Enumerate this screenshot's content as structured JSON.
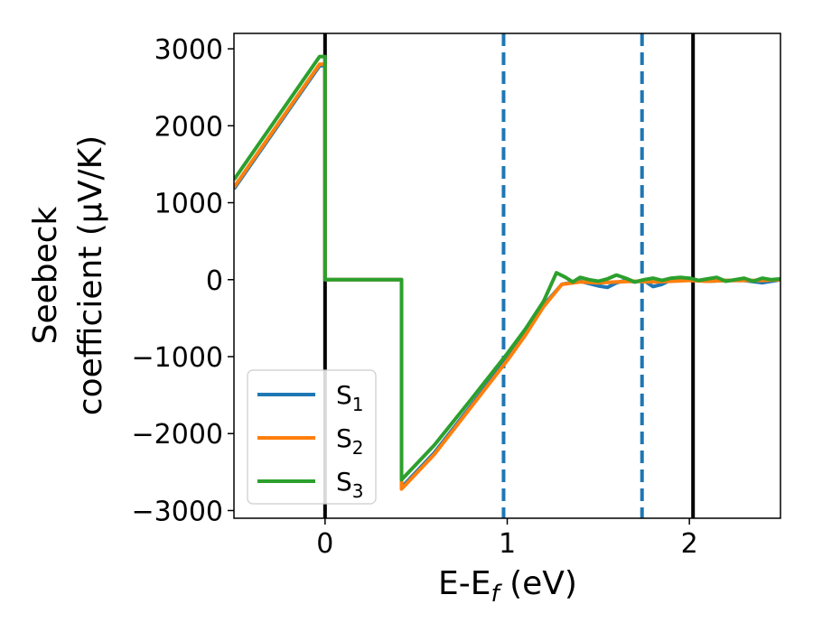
{
  "chart_data": {
    "type": "line",
    "xlabel_parts": [
      "E-E",
      "f",
      " (eV)"
    ],
    "ylabel_lines": [
      "Seebeck",
      "coefficient  (μV/K)"
    ],
    "xlim": [
      -0.5,
      2.5
    ],
    "ylim": [
      -3100,
      3200
    ],
    "x_ticks": [
      0,
      1,
      2
    ],
    "x_tick_labels": [
      "0",
      "1",
      "2"
    ],
    "y_ticks": [
      -3000,
      -2000,
      -1000,
      0,
      1000,
      2000,
      3000
    ],
    "y_tick_labels": [
      "−3000",
      "−2000",
      "−1000",
      "0",
      "1000",
      "2000",
      "3000"
    ],
    "grid": false,
    "legend_position": "lower-left",
    "vertical_lines": [
      {
        "x": 0,
        "style": "solid",
        "color": "#000000"
      },
      {
        "x": 2.02,
        "style": "solid",
        "color": "#000000"
      },
      {
        "x": 0.98,
        "style": "dashed",
        "color": "#1f77b4"
      },
      {
        "x": 1.74,
        "style": "dashed",
        "color": "#1f77b4"
      }
    ],
    "series": [
      {
        "name": "S",
        "sub": "1",
        "color": "#1f77b4",
        "points": [
          [
            -0.5,
            1180
          ],
          [
            -0.03,
            2780
          ],
          [
            0,
            2780
          ],
          [
            0,
            0
          ],
          [
            0.42,
            0
          ],
          [
            0.42,
            -2700
          ],
          [
            0.6,
            -2250
          ],
          [
            0.8,
            -1640
          ],
          [
            1.0,
            -1030
          ],
          [
            1.1,
            -700
          ],
          [
            1.2,
            -330
          ],
          [
            1.3,
            -60
          ],
          [
            1.4,
            -20
          ],
          [
            1.5,
            -80
          ],
          [
            1.55,
            -100
          ],
          [
            1.6,
            -40
          ],
          [
            1.65,
            -10
          ],
          [
            1.7,
            -30
          ],
          [
            1.75,
            -10
          ],
          [
            1.8,
            -90
          ],
          [
            1.85,
            -60
          ],
          [
            1.9,
            0
          ],
          [
            2.0,
            0
          ],
          [
            2.1,
            -20
          ],
          [
            2.2,
            -10
          ],
          [
            2.3,
            -10
          ],
          [
            2.4,
            -40
          ],
          [
            2.5,
            0
          ]
        ]
      },
      {
        "name": "S",
        "sub": "2",
        "color": "#ff7f0e",
        "points": [
          [
            -0.5,
            1200
          ],
          [
            -0.03,
            2800
          ],
          [
            0,
            2800
          ],
          [
            0,
            0
          ],
          [
            0.42,
            0
          ],
          [
            0.42,
            -2720
          ],
          [
            0.6,
            -2270
          ],
          [
            0.8,
            -1660
          ],
          [
            1.0,
            -1050
          ],
          [
            1.1,
            -720
          ],
          [
            1.2,
            -350
          ],
          [
            1.3,
            -60
          ],
          [
            1.4,
            -30
          ],
          [
            1.5,
            -40
          ],
          [
            1.6,
            -30
          ],
          [
            1.7,
            -20
          ],
          [
            1.8,
            -30
          ],
          [
            1.9,
            -20
          ],
          [
            2.0,
            -10
          ],
          [
            2.1,
            -20
          ],
          [
            2.2,
            -10
          ],
          [
            2.3,
            -10
          ],
          [
            2.4,
            -10
          ],
          [
            2.5,
            0
          ]
        ]
      },
      {
        "name": "S",
        "sub": "3",
        "color": "#2ca02c",
        "points": [
          [
            -0.5,
            1300
          ],
          [
            -0.03,
            2900
          ],
          [
            0,
            2900
          ],
          [
            0,
            0
          ],
          [
            0.42,
            0
          ],
          [
            0.42,
            -2600
          ],
          [
            0.6,
            -2150
          ],
          [
            0.8,
            -1560
          ],
          [
            1.0,
            -960
          ],
          [
            1.1,
            -640
          ],
          [
            1.2,
            -280
          ],
          [
            1.27,
            90
          ],
          [
            1.32,
            30
          ],
          [
            1.36,
            -30
          ],
          [
            1.4,
            30
          ],
          [
            1.45,
            0
          ],
          [
            1.5,
            -20
          ],
          [
            1.55,
            10
          ],
          [
            1.6,
            60
          ],
          [
            1.65,
            20
          ],
          [
            1.7,
            -30
          ],
          [
            1.75,
            0
          ],
          [
            1.8,
            20
          ],
          [
            1.85,
            -10
          ],
          [
            1.9,
            20
          ],
          [
            1.95,
            30
          ],
          [
            2.0,
            20
          ],
          [
            2.05,
            -10
          ],
          [
            2.1,
            10
          ],
          [
            2.15,
            30
          ],
          [
            2.2,
            -20
          ],
          [
            2.25,
            0
          ],
          [
            2.3,
            20
          ],
          [
            2.35,
            -20
          ],
          [
            2.4,
            20
          ],
          [
            2.45,
            0
          ],
          [
            2.5,
            10
          ]
        ]
      }
    ]
  }
}
